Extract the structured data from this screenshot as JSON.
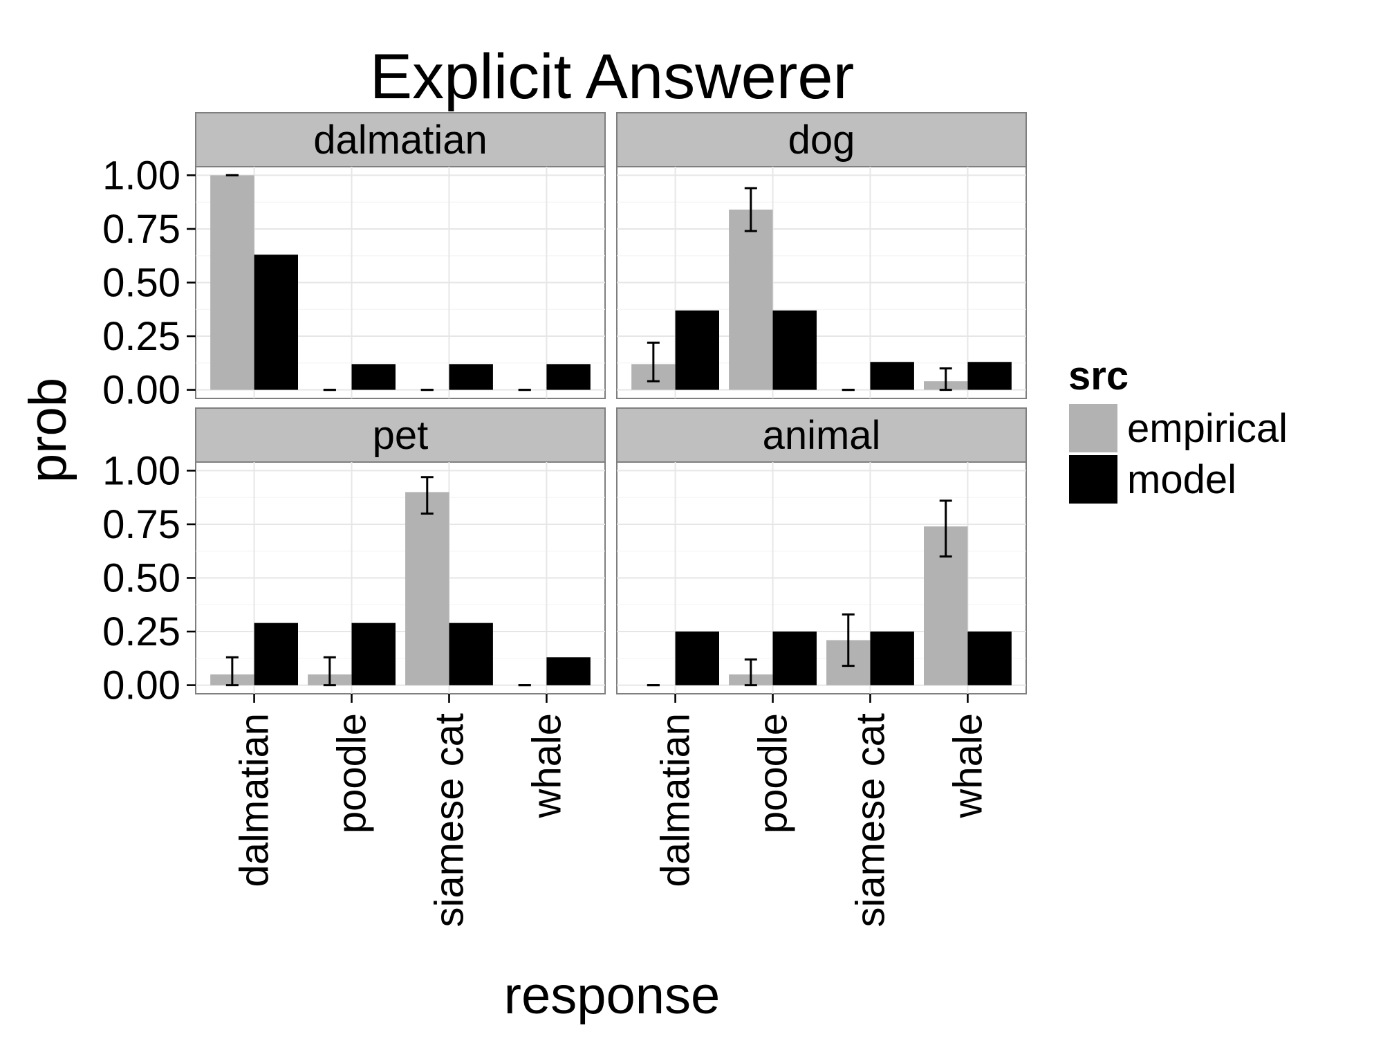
{
  "chart_data": {
    "type": "bar",
    "title": "Explicit Answerer",
    "xlabel": "response",
    "ylabel": "prob",
    "ylim": [
      0,
      1
    ],
    "yticks": [
      "0.00",
      "0.25",
      "0.50",
      "0.75",
      "1.00"
    ],
    "ytick_values": [
      0,
      0.25,
      0.5,
      0.75,
      1.0
    ],
    "grid": true,
    "legend": {
      "title": "src",
      "placement": "right",
      "entries": [
        {
          "label": "empirical",
          "color": "#b2b2b2"
        },
        {
          "label": "model",
          "color": "#000000"
        }
      ]
    },
    "categories": [
      "dalmatian",
      "poodle",
      "siamese cat",
      "whale"
    ],
    "facets": [
      {
        "label": "dalmatian",
        "series": [
          {
            "name": "empirical",
            "values": [
              1.0,
              0.0,
              0.0,
              0.0
            ],
            "err_low": [
              1.0,
              0.0,
              0.0,
              0.0
            ],
            "err_high": [
              1.0,
              0.0,
              0.0,
              0.0
            ]
          },
          {
            "name": "model",
            "values": [
              0.63,
              0.12,
              0.12,
              0.12
            ]
          }
        ]
      },
      {
        "label": "dog",
        "series": [
          {
            "name": "empirical",
            "values": [
              0.12,
              0.84,
              0.0,
              0.04
            ],
            "err_low": [
              0.04,
              0.74,
              0.0,
              0.0
            ],
            "err_high": [
              0.22,
              0.94,
              0.0,
              0.1
            ]
          },
          {
            "name": "model",
            "values": [
              0.37,
              0.37,
              0.13,
              0.13
            ]
          }
        ]
      },
      {
        "label": "pet",
        "series": [
          {
            "name": "empirical",
            "values": [
              0.05,
              0.05,
              0.9,
              0.0
            ],
            "err_low": [
              0.0,
              0.0,
              0.8,
              0.0
            ],
            "err_high": [
              0.13,
              0.13,
              0.97,
              0.0
            ]
          },
          {
            "name": "model",
            "values": [
              0.29,
              0.29,
              0.29,
              0.13
            ]
          }
        ]
      },
      {
        "label": "animal",
        "series": [
          {
            "name": "empirical",
            "values": [
              0.0,
              0.05,
              0.21,
              0.74
            ],
            "err_low": [
              0.0,
              0.0,
              0.09,
              0.6
            ],
            "err_high": [
              0.0,
              0.12,
              0.33,
              0.86
            ]
          },
          {
            "name": "model",
            "values": [
              0.25,
              0.25,
              0.25,
              0.25
            ]
          }
        ]
      }
    ]
  }
}
